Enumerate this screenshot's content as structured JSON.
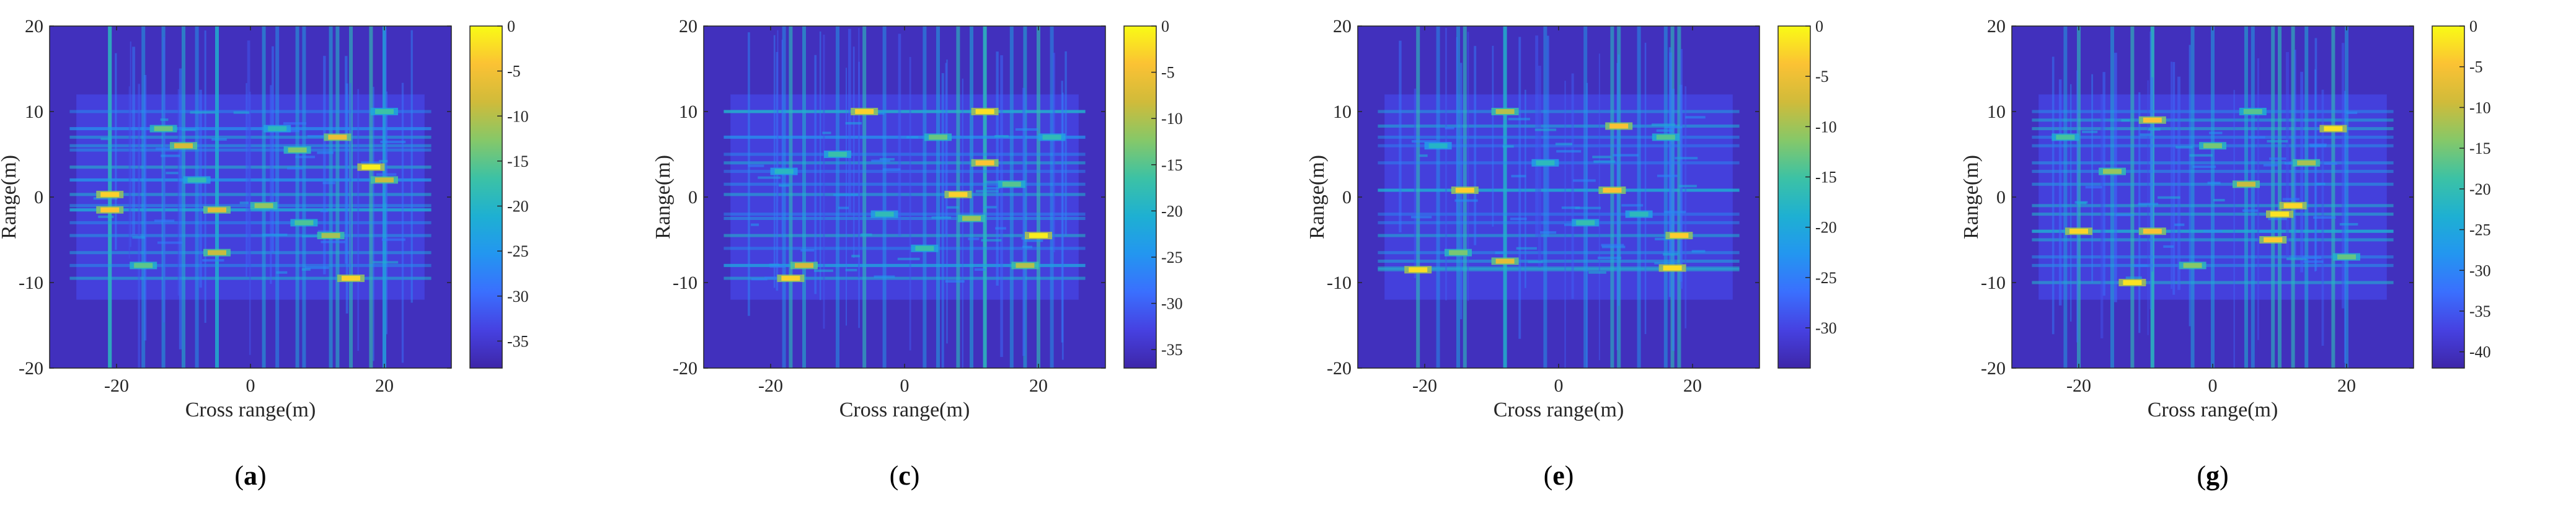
{
  "chart_data": [
    {
      "type": "heatmap",
      "panel_label": "a",
      "xlabel": "Cross range(m)",
      "ylabel": "Range(m)",
      "xlim": [
        -30,
        30
      ],
      "ylim": [
        -20,
        20
      ],
      "x_ticks": [
        -20,
        0,
        20
      ],
      "y_ticks": [
        -20,
        -10,
        0,
        10,
        20
      ],
      "colorbar": {
        "min": -38,
        "max": 0,
        "ticks": [
          0,
          -5,
          -10,
          -15,
          -20,
          -25,
          -30,
          -35
        ]
      },
      "scatterers": [
        {
          "x": -21,
          "y": 0.3,
          "v": -3
        },
        {
          "x": -21,
          "y": -1.5,
          "v": -4
        },
        {
          "x": -10,
          "y": 6,
          "v": -8
        },
        {
          "x": -13,
          "y": 8,
          "v": -14
        },
        {
          "x": -5,
          "y": -1.5,
          "v": -7
        },
        {
          "x": -5,
          "y": -6.5,
          "v": -9
        },
        {
          "x": 2,
          "y": -1,
          "v": -12
        },
        {
          "x": 7,
          "y": 5.5,
          "v": -13
        },
        {
          "x": 12,
          "y": -4.5,
          "v": -11
        },
        {
          "x": 13,
          "y": 7,
          "v": -6
        },
        {
          "x": 15,
          "y": -9.5,
          "v": -3
        },
        {
          "x": 18,
          "y": 3.5,
          "v": -1
        },
        {
          "x": 20,
          "y": 2,
          "v": -9
        },
        {
          "x": 8,
          "y": -3,
          "v": -16
        },
        {
          "x": -16,
          "y": -8,
          "v": -15
        },
        {
          "x": 20,
          "y": 10,
          "v": -17
        },
        {
          "x": -8,
          "y": 2,
          "v": -18
        },
        {
          "x": 4,
          "y": 8,
          "v": -19
        }
      ]
    },
    {
      "type": "heatmap",
      "panel_label": "c",
      "xlabel": "Cross range(m)",
      "ylabel": "Range(m)",
      "xlim": [
        -30,
        30
      ],
      "ylim": [
        -20,
        20
      ],
      "x_ticks": [
        -20,
        0,
        20
      ],
      "y_ticks": [
        -20,
        -10,
        0,
        10,
        20
      ],
      "colorbar": {
        "min": -37,
        "max": 0,
        "ticks": [
          0,
          -5,
          -10,
          -15,
          -20,
          -25,
          -30,
          -35
        ]
      },
      "scatterers": [
        {
          "x": -6,
          "y": 10,
          "v": -3
        },
        {
          "x": 12,
          "y": 10,
          "v": -2
        },
        {
          "x": 12,
          "y": 4,
          "v": -4
        },
        {
          "x": 8,
          "y": 0.3,
          "v": -3
        },
        {
          "x": 20,
          "y": -4.5,
          "v": -1
        },
        {
          "x": -17,
          "y": -9.5,
          "v": -3
        },
        {
          "x": -15,
          "y": -8,
          "v": -8
        },
        {
          "x": 18,
          "y": -8,
          "v": -10
        },
        {
          "x": 10,
          "y": -2.5,
          "v": -11
        },
        {
          "x": 5,
          "y": 7,
          "v": -14
        },
        {
          "x": -10,
          "y": 5,
          "v": -17
        },
        {
          "x": 16,
          "y": 1.5,
          "v": -15
        },
        {
          "x": -3,
          "y": -2,
          "v": -18
        },
        {
          "x": 3,
          "y": -6,
          "v": -17
        },
        {
          "x": -18,
          "y": 3,
          "v": -19
        },
        {
          "x": 22,
          "y": 7,
          "v": -18
        }
      ]
    },
    {
      "type": "heatmap",
      "panel_label": "e",
      "xlabel": "Cross range(m)",
      "ylabel": "Range(m)",
      "xlim": [
        -30,
        30
      ],
      "ylim": [
        -20,
        20
      ],
      "x_ticks": [
        -20,
        0,
        20
      ],
      "y_ticks": [
        -20,
        -10,
        0,
        10,
        20
      ],
      "colorbar": {
        "min": -34,
        "max": 0,
        "ticks": [
          0,
          -5,
          -10,
          -15,
          -20,
          -25,
          -30
        ]
      },
      "scatterers": [
        {
          "x": -8,
          "y": 10,
          "v": -9
        },
        {
          "x": 9,
          "y": 8.3,
          "v": -4
        },
        {
          "x": -14,
          "y": 0.8,
          "v": -3
        },
        {
          "x": 8,
          "y": 0.8,
          "v": -4
        },
        {
          "x": -21,
          "y": -8.5,
          "v": -2
        },
        {
          "x": -8,
          "y": -7.5,
          "v": -6
        },
        {
          "x": 18,
          "y": -4.5,
          "v": -3
        },
        {
          "x": 17,
          "y": -8.3,
          "v": -2
        },
        {
          "x": -15,
          "y": -6.5,
          "v": -12
        },
        {
          "x": 16,
          "y": 7,
          "v": -14
        },
        {
          "x": -2,
          "y": 4,
          "v": -17
        },
        {
          "x": 4,
          "y": -3,
          "v": -16
        },
        {
          "x": -18,
          "y": 6,
          "v": -18
        },
        {
          "x": 12,
          "y": -2,
          "v": -17
        }
      ]
    },
    {
      "type": "heatmap",
      "panel_label": "g",
      "xlabel": "Cross range(m)",
      "ylabel": "Range(m)",
      "xlim": [
        -30,
        30
      ],
      "ylim": [
        -20,
        20
      ],
      "x_ticks": [
        -20,
        0,
        20
      ],
      "y_ticks": [
        -20,
        -10,
        0,
        10,
        20
      ],
      "colorbar": {
        "min": -42,
        "max": 0,
        "ticks": [
          0,
          -5,
          -10,
          -15,
          -20,
          -25,
          -30,
          -35,
          -40
        ]
      },
      "scatterers": [
        {
          "x": 18,
          "y": 8,
          "v": -2
        },
        {
          "x": -9,
          "y": 9,
          "v": -5
        },
        {
          "x": 12,
          "y": -1,
          "v": -3
        },
        {
          "x": 10,
          "y": -2,
          "v": -2
        },
        {
          "x": 9,
          "y": -5,
          "v": -4
        },
        {
          "x": -20,
          "y": -4,
          "v": -3
        },
        {
          "x": -9,
          "y": -4,
          "v": -5
        },
        {
          "x": -12,
          "y": -10,
          "v": -2
        },
        {
          "x": 5,
          "y": 1.5,
          "v": -10
        },
        {
          "x": -15,
          "y": 3,
          "v": -13
        },
        {
          "x": 14,
          "y": 4,
          "v": -12
        },
        {
          "x": 0,
          "y": 6,
          "v": -15
        },
        {
          "x": -3,
          "y": -8,
          "v": -14
        },
        {
          "x": 20,
          "y": -7,
          "v": -16
        },
        {
          "x": -22,
          "y": 7,
          "v": -18
        },
        {
          "x": 6,
          "y": 10,
          "v": -17
        }
      ]
    }
  ],
  "colors": {
    "parula": [
      "#3e26a8",
      "#4641e1",
      "#3a6ffe",
      "#2396f0",
      "#1eb0d2",
      "#3cc2a5",
      "#86c868",
      "#d0bb3a",
      "#fbc234",
      "#f9fb15"
    ]
  }
}
